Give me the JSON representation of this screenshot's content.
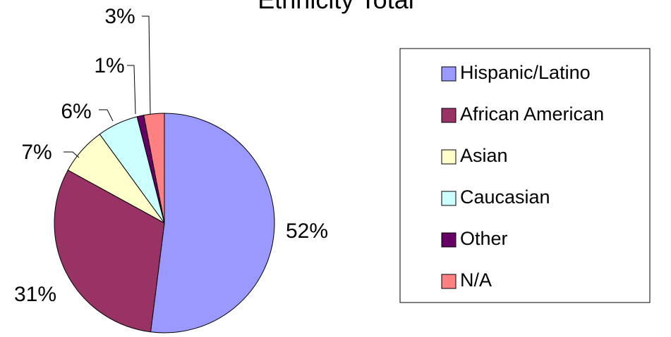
{
  "chart_data": {
    "type": "pie",
    "title": "Ethnicity Total",
    "categories": [
      "Hispanic/Latino",
      "African American",
      "Asian",
      "Caucasian",
      "Other",
      "N/A"
    ],
    "values": [
      52,
      31,
      7,
      6,
      1,
      3
    ],
    "value_labels": [
      "52%",
      "31%",
      "7%",
      "6%",
      "1%",
      "3%"
    ],
    "colors": [
      "#9999ff",
      "#993366",
      "#ffffcc",
      "#ccffff",
      "#660066",
      "#ff8080"
    ],
    "legend": "right"
  }
}
